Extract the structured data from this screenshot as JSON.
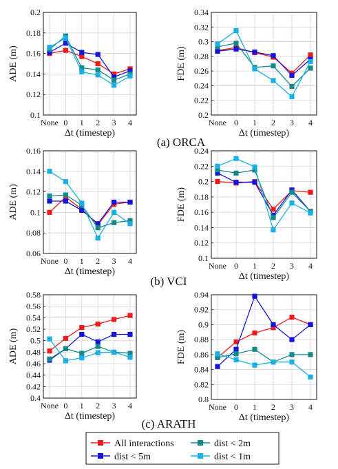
{
  "series_styles": [
    {
      "name": "All interactions",
      "color": "#ee1c1c"
    },
    {
      "name": "dist < 5m",
      "color": "#1414dc"
    },
    {
      "name": "dist < 2m",
      "color": "#168a8a"
    },
    {
      "name": "dist < 1m",
      "color": "#1ab0e4"
    }
  ],
  "captions": [
    "(a) ORCA",
    "(b) VCI",
    "(c) ARATH"
  ],
  "chart_data": [
    {
      "type": "line",
      "title": "",
      "xlabel": "Δt (timestep)",
      "ylabel": "ADE (m)",
      "categories": [
        "None",
        "0",
        "1",
        "2",
        "3",
        "4"
      ],
      "ylim": [
        0.1,
        0.2
      ],
      "yticks": [
        "0.1",
        "0.12",
        "0.14",
        "0.16",
        "0.18",
        "0.2"
      ],
      "grid": true,
      "series": [
        {
          "name": "All interactions",
          "values": [
            0.16,
            0.163,
            0.157,
            0.15,
            0.14,
            0.145
          ]
        },
        {
          "name": "dist < 5m",
          "values": [
            0.161,
            0.17,
            0.161,
            0.159,
            0.137,
            0.143
          ]
        },
        {
          "name": "dist < 2m",
          "values": [
            0.164,
            0.177,
            0.146,
            0.144,
            0.134,
            0.14
          ]
        },
        {
          "name": "dist < 1m",
          "values": [
            0.166,
            0.175,
            0.142,
            0.139,
            0.129,
            0.138
          ]
        }
      ]
    },
    {
      "type": "line",
      "title": "",
      "xlabel": "Δt (timestep)",
      "ylabel": "FDE (m)",
      "categories": [
        "None",
        "0",
        "1",
        "2",
        "3",
        "4"
      ],
      "ylim": [
        0.2,
        0.34
      ],
      "yticks": [
        "0.2",
        "0.22",
        "0.24",
        "0.26",
        "0.28",
        "0.3",
        "0.32",
        "0.34"
      ],
      "grid": true,
      "series": [
        {
          "name": "All interactions",
          "values": [
            0.288,
            0.292,
            0.285,
            0.279,
            0.257,
            0.282
          ]
        },
        {
          "name": "dist < 5m",
          "values": [
            0.287,
            0.29,
            0.286,
            0.281,
            0.254,
            0.276
          ]
        },
        {
          "name": "dist < 2m",
          "values": [
            0.293,
            0.298,
            0.265,
            0.267,
            0.239,
            0.264
          ]
        },
        {
          "name": "dist < 1m",
          "values": [
            0.297,
            0.315,
            0.263,
            0.247,
            0.225,
            0.273
          ]
        }
      ]
    },
    {
      "type": "line",
      "title": "",
      "xlabel": "Δt (timestep)",
      "ylabel": "ADE (m)",
      "categories": [
        "None",
        "0",
        "1",
        "2",
        "3",
        "4"
      ],
      "ylim": [
        0.06,
        0.16
      ],
      "yticks": [
        "0.06",
        "0.08",
        "0.1",
        "0.12",
        "0.14",
        "0.16"
      ],
      "grid": true,
      "series": [
        {
          "name": "All interactions",
          "values": [
            0.1,
            0.115,
            0.103,
            0.088,
            0.108,
            0.11
          ]
        },
        {
          "name": "dist < 5m",
          "values": [
            0.111,
            0.111,
            0.102,
            0.089,
            0.11,
            0.11
          ]
        },
        {
          "name": "dist < 2m",
          "values": [
            0.116,
            0.117,
            0.107,
            0.085,
            0.09,
            0.092
          ]
        },
        {
          "name": "dist < 1m",
          "values": [
            0.14,
            0.13,
            0.109,
            0.075,
            0.1,
            0.089
          ]
        }
      ]
    },
    {
      "type": "line",
      "title": "",
      "xlabel": "Δt (timestep)",
      "ylabel": "FDE (m)",
      "categories": [
        "None",
        "0",
        "1",
        "2",
        "3",
        "4"
      ],
      "ylim": [
        0.1,
        0.24
      ],
      "yticks": [
        "0.1",
        "0.12",
        "0.14",
        "0.16",
        "0.18",
        "0.2",
        "0.22",
        "0.24"
      ],
      "grid": true,
      "series": [
        {
          "name": "All interactions",
          "values": [
            0.2,
            0.198,
            0.2,
            0.164,
            0.188,
            0.186
          ]
        },
        {
          "name": "dist < 5m",
          "values": [
            0.211,
            0.199,
            0.199,
            0.156,
            0.189,
            0.161
          ]
        },
        {
          "name": "dist < 2m",
          "values": [
            0.215,
            0.211,
            0.215,
            0.153,
            0.186,
            0.161
          ]
        },
        {
          "name": "dist < 1m",
          "values": [
            0.22,
            0.23,
            0.219,
            0.137,
            0.172,
            0.159
          ]
        }
      ]
    },
    {
      "type": "line",
      "title": "",
      "xlabel": "Δt (timestep)",
      "ylabel": "ADE (m)",
      "categories": [
        "None",
        "0",
        "1",
        "2",
        "3",
        "4"
      ],
      "ylim": [
        0.4,
        0.58
      ],
      "yticks": [
        "0.4",
        "0.42",
        "0.44",
        "0.46",
        "0.48",
        "0.5",
        "0.52",
        "0.54",
        "0.56",
        "0.58"
      ],
      "grid": true,
      "series": [
        {
          "name": "All interactions",
          "values": [
            0.482,
            0.504,
            0.523,
            0.529,
            0.537,
            0.544
          ]
        },
        {
          "name": "dist < 5m",
          "values": [
            0.466,
            0.486,
            0.511,
            0.498,
            0.511,
            0.511
          ]
        },
        {
          "name": "dist < 2m",
          "values": [
            0.468,
            0.486,
            0.478,
            0.49,
            0.48,
            0.478
          ]
        },
        {
          "name": "dist < 1m",
          "values": [
            0.503,
            0.465,
            0.47,
            0.479,
            0.48,
            0.471
          ]
        }
      ]
    },
    {
      "type": "line",
      "title": "",
      "xlabel": "Δt (timestep)",
      "ylabel": "FDE (m)",
      "categories": [
        "None",
        "0",
        "1",
        "2",
        "3",
        "4"
      ],
      "ylim": [
        0.8,
        0.94
      ],
      "yticks": [
        "0.8",
        "0.82",
        "0.84",
        "0.86",
        "0.88",
        "0.9",
        "0.92",
        "0.94"
      ],
      "grid": true,
      "series": [
        {
          "name": "All interactions",
          "values": [
            0.856,
            0.877,
            0.889,
            0.896,
            0.91,
            0.9
          ]
        },
        {
          "name": "dist < 5m",
          "values": [
            0.844,
            0.867,
            0.938,
            0.9,
            0.88,
            0.9
          ]
        },
        {
          "name": "dist < 2m",
          "values": [
            0.856,
            0.861,
            0.867,
            0.85,
            0.86,
            0.86
          ]
        },
        {
          "name": "dist < 1m",
          "values": [
            0.861,
            0.853,
            0.846,
            0.85,
            0.85,
            0.83
          ]
        }
      ]
    }
  ]
}
